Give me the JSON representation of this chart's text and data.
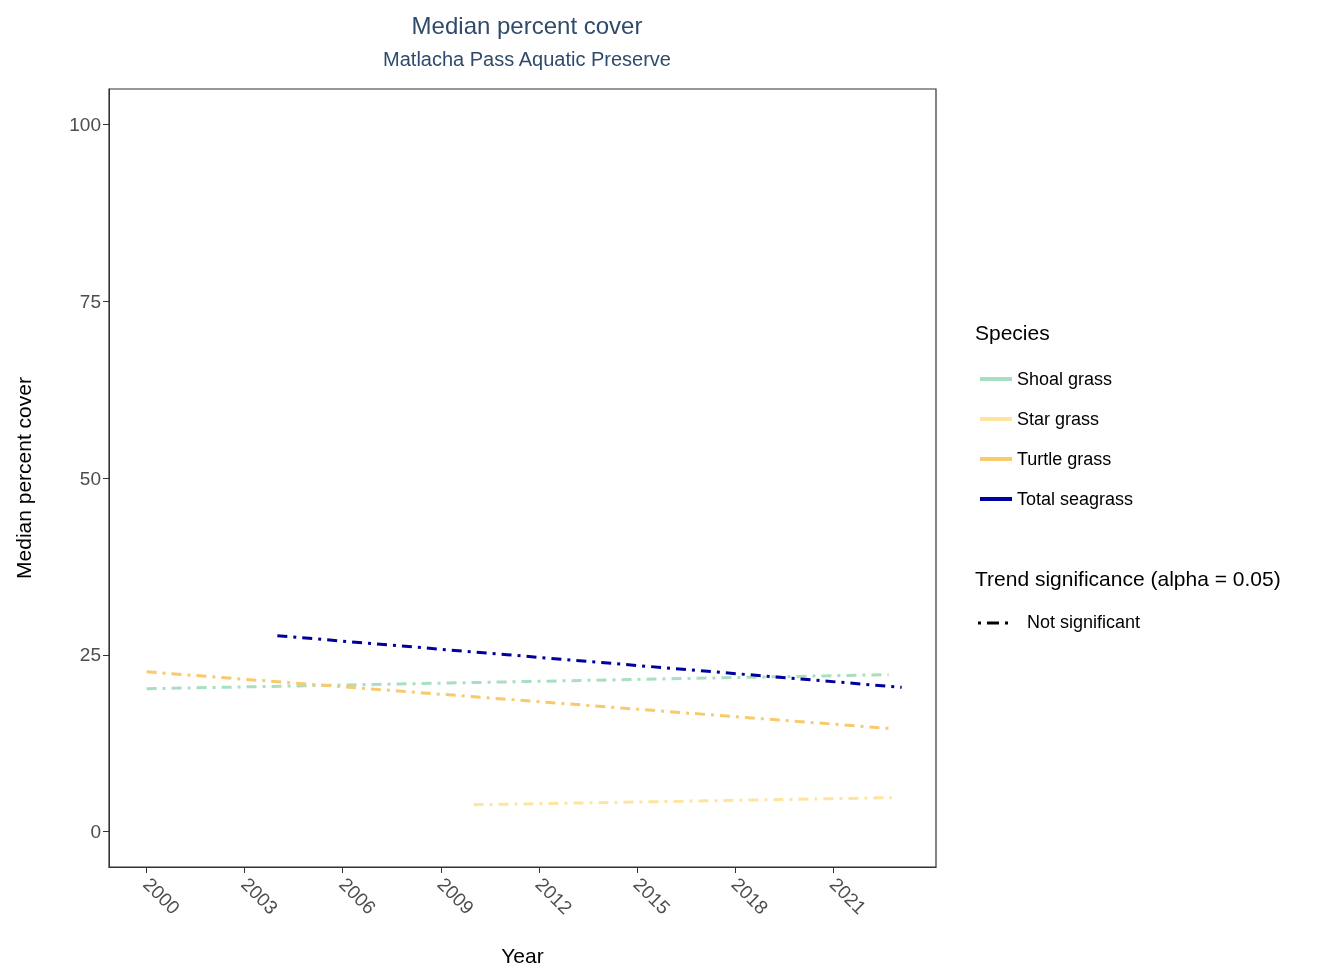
{
  "chart_data": {
    "type": "line",
    "title": "Median percent cover",
    "subtitle": "Matlacha Pass Aquatic Preserve",
    "xlabel": "Year",
    "ylabel": "Median percent cover",
    "legend_title": "Species",
    "series": [
      {
        "name": "Shoal grass",
        "color": "#a8dfc0",
        "x": [
          2000,
          2022.7
        ],
        "values": [
          20.2,
          22.2
        ]
      },
      {
        "name": "Star grass",
        "color": "#fde59d",
        "x": [
          2010,
          2022.8
        ],
        "values": [
          3.8,
          4.8
        ]
      },
      {
        "name": "Turtle grass",
        "color": "#f8ca6c",
        "x": [
          2000,
          2022.7
        ],
        "values": [
          22.6,
          14.6
        ]
      },
      {
        "name": "Total seagrass",
        "color": "#00009e",
        "x": [
          2004,
          2023.1
        ],
        "values": [
          27.7,
          20.4
        ]
      }
    ],
    "xlim": [
      1998.85,
      2024.15
    ],
    "ylim": [
      -5,
      105
    ],
    "xticks": [
      2000,
      2003,
      2006,
      2009,
      2012,
      2015,
      2018,
      2021
    ],
    "yticks": [
      0,
      25,
      50,
      75,
      100
    ],
    "grid": false,
    "legend": "right",
    "marker": "none",
    "line_style": "dashed",
    "annotations": [
      "Trend significance (alpha = 0.05)",
      "Not significant"
    ]
  }
}
